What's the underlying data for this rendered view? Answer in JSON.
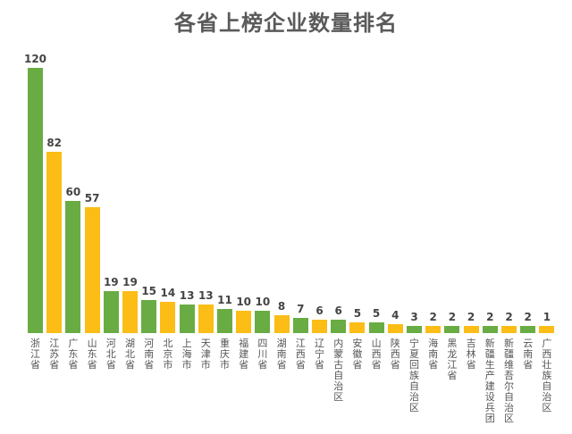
{
  "chart_data": {
    "type": "bar",
    "title": "各省上榜企业数量排名",
    "xlabel": "",
    "ylabel": "",
    "grid": false,
    "legend": null,
    "colors": {
      "green": "#6aac44",
      "yellow": "#fbbd16"
    },
    "categories": [
      "浙江省",
      "江苏省",
      "广东省",
      "山东省",
      "河北省",
      "湖北省",
      "河南省",
      "北京市",
      "上海市",
      "天津市",
      "重庆市",
      "福建省",
      "四川省",
      "湖南省",
      "江西省",
      "辽宁省",
      "内蒙古自治区",
      "安徽省",
      "山西省",
      "陕西省",
      "宁夏回族自治区",
      "海南省",
      "黑龙江省",
      "吉林省",
      "新疆生产建设兵团",
      "新疆维吾尔自治区",
      "云南省",
      "广西壮族自治区"
    ],
    "values": [
      120,
      82,
      60,
      57,
      19,
      19,
      15,
      14,
      13,
      13,
      11,
      10,
      10,
      8,
      7,
      6,
      6,
      5,
      5,
      4,
      3,
      2,
      2,
      2,
      2,
      2,
      2,
      1
    ],
    "ylim": [
      0,
      120
    ]
  }
}
